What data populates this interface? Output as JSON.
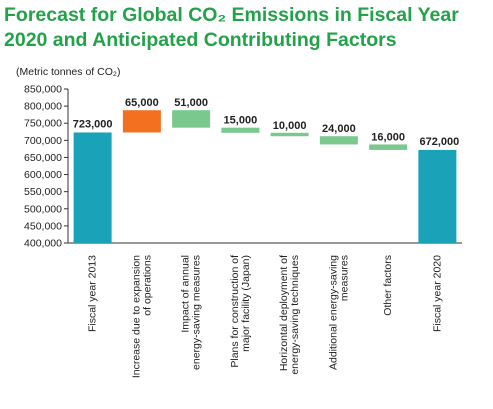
{
  "chart_data": {
    "type": "bar",
    "subtype": "waterfall",
    "title_line1": "Forecast for Global CO₂ Emissions in Fiscal Year",
    "title_line2": "2020 and Anticipated Contributing Factors",
    "unit_label": "(Metric tonnes of CO₂)",
    "ylim": [
      400000,
      850000
    ],
    "yticks": [
      400000,
      450000,
      500000,
      550000,
      600000,
      650000,
      700000,
      750000,
      800000,
      850000
    ],
    "ytick_labels": [
      "400,000",
      "450,000",
      "500,000",
      "550,000",
      "600,000",
      "650,000",
      "700,000",
      "750,000",
      "800,000",
      "850,000"
    ],
    "grid": false,
    "legend": "none",
    "colors": {
      "total": "#1aa3b8",
      "increase": "#f37021",
      "decrease": "#7ac88e",
      "title": "#23a24a"
    },
    "bars": [
      {
        "category": [
          "Fiscal year 2013"
        ],
        "kind": "total",
        "start": 400000,
        "end": 723000,
        "label": "723,000"
      },
      {
        "category": [
          "Increase due to expansion",
          "of operations"
        ],
        "kind": "increase",
        "start": 723000,
        "end": 788000,
        "label": "65,000"
      },
      {
        "category": [
          "Impact of annual",
          "energy-saving measures"
        ],
        "kind": "decrease",
        "start": 788000,
        "end": 737000,
        "label": "51,000"
      },
      {
        "category": [
          "Plans for construction of",
          "major facility (Japan)"
        ],
        "kind": "decrease",
        "start": 737000,
        "end": 722000,
        "label": "15,000"
      },
      {
        "category": [
          "Horizontal deployment of",
          "energy-saving techniques"
        ],
        "kind": "decrease",
        "start": 722000,
        "end": 712000,
        "label": "10,000"
      },
      {
        "category": [
          "Additional energy-saving",
          "measures"
        ],
        "kind": "decrease",
        "start": 712000,
        "end": 688000,
        "label": "24,000"
      },
      {
        "category": [
          "Other factors"
        ],
        "kind": "decrease",
        "start": 688000,
        "end": 672000,
        "label": "16,000"
      },
      {
        "category": [
          "Fiscal year 2020"
        ],
        "kind": "total",
        "start": 400000,
        "end": 672000,
        "label": "672,000"
      }
    ]
  }
}
